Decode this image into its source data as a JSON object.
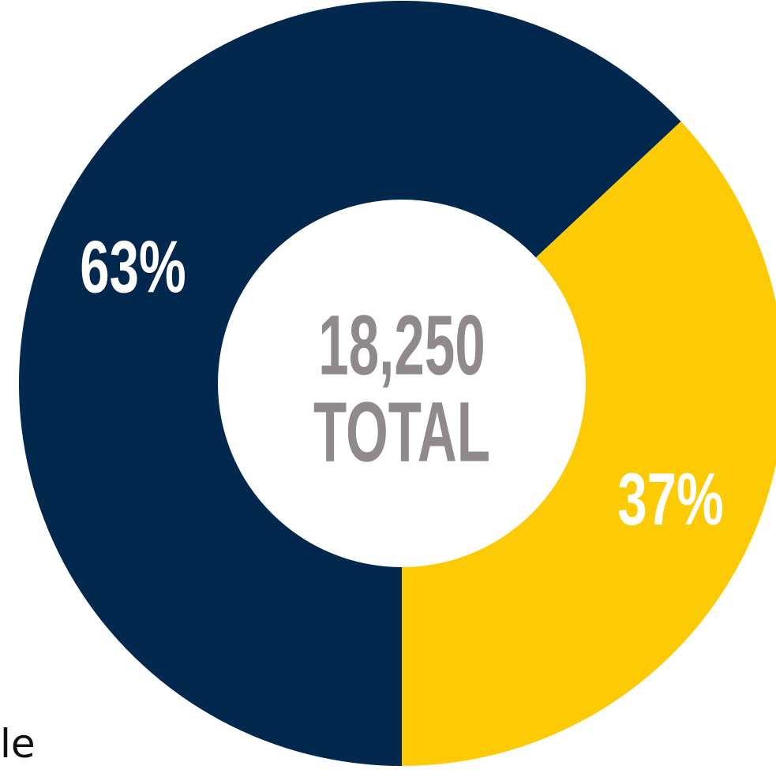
{
  "chart_data": {
    "type": "pie",
    "donut": true,
    "total_label": "18,250",
    "total_caption": "TOTAL",
    "slices": [
      {
        "label": "63%",
        "value": 63,
        "color": "#03284e"
      },
      {
        "label": "37%",
        "value": 37,
        "color": "#fccb05"
      }
    ],
    "center_text_color": "#908b8a",
    "slice_label_color": "#ffffff"
  },
  "stray_text": "le"
}
